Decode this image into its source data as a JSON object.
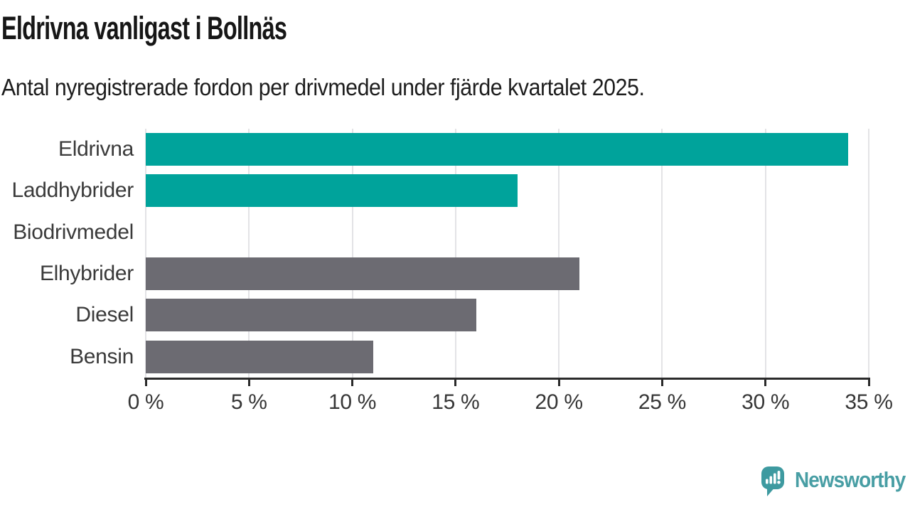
{
  "chart_data": {
    "type": "bar",
    "orientation": "horizontal",
    "title": "Eldrivna vanligast i Bollnäs",
    "subtitle": "Antal nyregistrerade fordon per drivmedel under fjärde kvartalet 2025.",
    "categories": [
      "Eldrivna",
      "Laddhybrider",
      "Biodrivmedel",
      "Elhybrider",
      "Diesel",
      "Bensin"
    ],
    "values": [
      34,
      18,
      0,
      21,
      16,
      11
    ],
    "unit": "%",
    "bar_colors": [
      "#00a39b",
      "#00a39b",
      "#00a39b",
      "#6c6b72",
      "#6c6b72",
      "#6c6b72"
    ],
    "highlight_color": "#00a39b",
    "default_color": "#6c6b72",
    "xlim": [
      0,
      35
    ],
    "x_ticks": [
      0,
      5,
      10,
      15,
      20,
      25,
      30,
      35
    ],
    "x_tick_labels": [
      "0 %",
      "5 %",
      "10 %",
      "15 %",
      "20 %",
      "25 %",
      "30 %",
      "35 %"
    ],
    "grid": "vertical-gridlines-on",
    "legend": "none"
  },
  "logo": {
    "text": "Newsworthy",
    "icon": "newsworthy-speech-bubble-bar-chart-icon",
    "icon_color": "#3e9aa0",
    "text_color": "#489ea4"
  },
  "colors": {
    "background": "#ffffff",
    "axis": "#2b2b2b",
    "gridline": "#e3e3e6",
    "title_text": "#161616",
    "subtitle_text": "#1d1d1d",
    "label_text": "#3a3a3a"
  }
}
